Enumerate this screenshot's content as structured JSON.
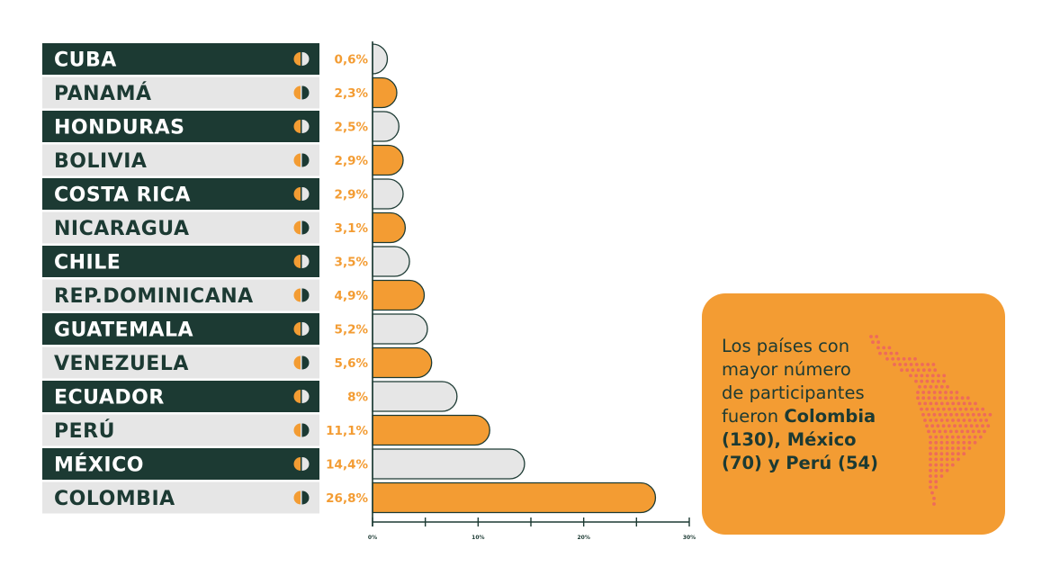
{
  "chart_data": {
    "type": "bar",
    "orientation": "horizontal",
    "categories": [
      "CUBA",
      "PANAMÁ",
      "HONDURAS",
      "BOLIVIA",
      "COSTA RICA",
      "NICARAGUA",
      "CHILE",
      "REP.DOMINICANA",
      "GUATEMALA",
      "VENEZUELA",
      "ECUADOR",
      "PERÚ",
      "MÉXICO",
      "COLOMBIA"
    ],
    "values": [
      0.6,
      2.3,
      2.5,
      2.9,
      2.9,
      3.1,
      3.5,
      4.9,
      5.2,
      5.6,
      8,
      11.1,
      14.4,
      26.8
    ],
    "value_labels": [
      "0,6%",
      "2,3%",
      "2,5%",
      "2,9%",
      "2,9%",
      "3,1%",
      "3,5%",
      "4,9%",
      "5,2%",
      "5,6%",
      "8%",
      "11,1%",
      "14,4%",
      "26,8%"
    ],
    "xlim": [
      0,
      30
    ],
    "xticks": [
      0,
      10,
      20,
      30
    ],
    "xtick_labels": [
      "0%",
      "10%",
      "20%",
      "30%"
    ],
    "grid": false,
    "title": "",
    "xlabel": "",
    "ylabel": ""
  },
  "colors": {
    "dark": "#1c3a33",
    "orange": "#f39c33",
    "light": "#e6e6e6"
  },
  "callout": {
    "line1": "Los países con",
    "line2": "mayor número",
    "line3": "de participantes",
    "line4_prefix": "fueron ",
    "line4_bold": "Colombia",
    "line5_bold": "(130), México",
    "line6_bold": "(70) y Perú (54)"
  }
}
